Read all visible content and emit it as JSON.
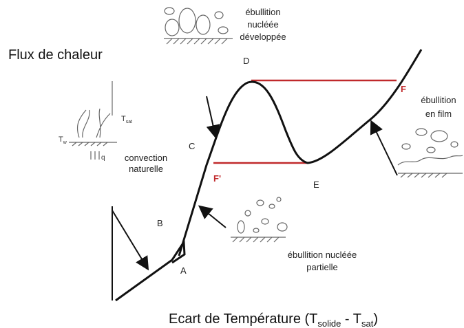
{
  "axes": {
    "y_label": "Flux de chaleur",
    "x_label": {
      "text": "Ecart de Température (T",
      "sub1": "solide",
      "mid": " - T",
      "sub2": "sat",
      "end": ")"
    }
  },
  "points": {
    "A": "A",
    "B": "B",
    "C": "C",
    "D": "D",
    "E": "E",
    "F": "F",
    "F_prime": "F'"
  },
  "regions": {
    "nucleate_developed": [
      "ébullition",
      "nucléée",
      "développée"
    ],
    "film": [
      "ébullition",
      "en film"
    ],
    "convection": [
      "convection",
      "naturelle"
    ],
    "nucleate_partial": [
      "ébullition nucléée",
      "partielle"
    ],
    "convection_icon": {
      "tw": "T",
      "tw_sub": "w",
      "tsat": "T",
      "tsat_sub": "sat",
      "q": "q"
    }
  }
}
